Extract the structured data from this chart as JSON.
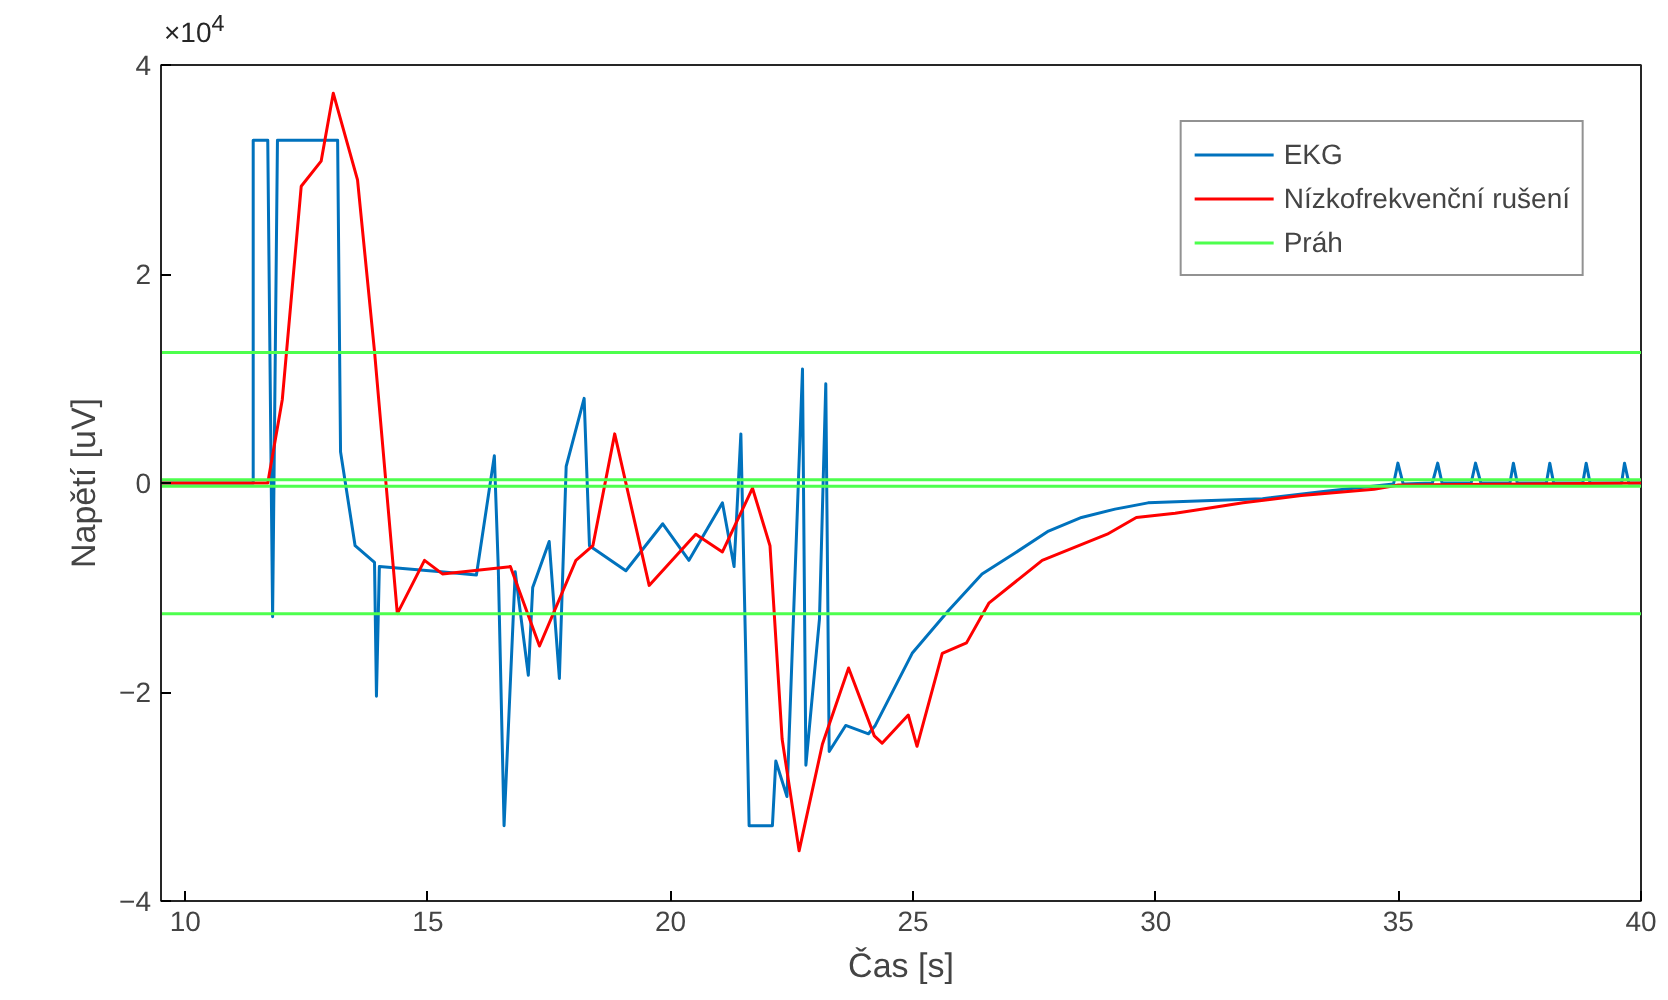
{
  "chart_data": {
    "type": "line",
    "xlabel": "Čas [s]",
    "ylabel": "Napětí [uV]",
    "annotations": [
      "×10$^{4}$"
    ],
    "xlim": [
      9.5,
      40
    ],
    "ylim": [
      -4,
      4
    ],
    "xticks": [
      10,
      15,
      20,
      25,
      30,
      35,
      40
    ],
    "yticks": [
      -4,
      -2,
      0,
      2,
      4
    ],
    "grid": false,
    "legend": "top right",
    "series": [
      {
        "name": "EKG",
        "color": "#0072bd",
        "x": [
          9.5,
          11.0,
          11.4,
          11.4,
          11.7,
          11.8,
          11.9,
          13.14,
          13.2,
          13.5,
          13.9,
          13.94,
          14.0,
          15.27,
          16.0,
          16.37,
          16.45,
          16.57,
          16.8,
          17.07,
          17.16,
          17.5,
          17.71,
          17.85,
          18.22,
          18.33,
          19.08,
          19.84,
          20.38,
          21.07,
          21.31,
          21.45,
          21.55,
          21.62,
          22.1,
          22.17,
          22.4,
          22.72,
          22.79,
          23.07,
          23.2,
          23.27,
          23.61,
          24.08,
          24.22,
          24.98,
          25.73,
          26.42,
          27.1,
          27.79,
          28.47,
          29.16,
          29.84,
          31.0,
          32.2,
          33.5,
          34.9,
          34.99,
          35.1,
          35.7,
          35.81,
          35.9,
          36.5,
          36.59,
          36.7,
          37.3,
          37.37,
          37.45,
          38.05,
          38.12,
          38.2,
          38.8,
          38.87,
          38.95,
          39.6,
          39.66,
          39.75,
          40.0
        ],
        "values": [
          0.0,
          0.0,
          0.0,
          3.28,
          3.28,
          -1.28,
          3.28,
          3.28,
          0.3,
          -0.6,
          -0.76,
          -2.04,
          -0.8,
          -0.85,
          -0.88,
          0.26,
          -0.8,
          -3.28,
          -0.85,
          -1.84,
          -1.0,
          -0.56,
          -1.87,
          0.16,
          0.81,
          -0.6,
          -0.84,
          -0.39,
          -0.74,
          -0.19,
          -0.8,
          0.47,
          -1.63,
          -3.28,
          -3.28,
          -2.66,
          -3.0,
          1.09,
          -2.7,
          -1.3,
          0.95,
          -2.57,
          -2.32,
          -2.4,
          -2.32,
          -1.63,
          -1.22,
          -0.87,
          -0.67,
          -0.46,
          -0.33,
          -0.25,
          -0.19,
          -0.17,
          -0.15,
          -0.08,
          -0.01,
          0.19,
          -0.01,
          0.0,
          0.19,
          0.0,
          0.0,
          0.19,
          0.0,
          0.0,
          0.19,
          0.0,
          0.0,
          0.19,
          0.0,
          0.0,
          0.19,
          0.0,
          0.0,
          0.19,
          0.0,
          0.0
        ]
      },
      {
        "name": "Nízkofrekvenční rušení",
        "color": "#ff0000",
        "x": [
          9.5,
          11.7,
          12.0,
          12.39,
          12.8,
          13.05,
          13.55,
          13.9,
          14.37,
          14.93,
          15.3,
          16.7,
          17.3,
          18.05,
          18.4,
          18.85,
          19.56,
          20.52,
          21.07,
          21.69,
          22.05,
          22.3,
          22.65,
          23.13,
          23.67,
          24.2,
          24.36,
          24.9,
          25.08,
          25.6,
          26.1,
          26.56,
          27.66,
          29.0,
          29.6,
          30.4,
          31.8,
          33.0,
          34.5,
          35.0,
          40.0
        ],
        "values": [
          0.0,
          0.0,
          0.8,
          2.84,
          3.08,
          3.73,
          2.9,
          1.26,
          -1.25,
          -0.74,
          -0.87,
          -0.8,
          -1.56,
          -0.74,
          -0.6,
          0.47,
          -0.98,
          -0.49,
          -0.66,
          -0.05,
          -0.6,
          -2.45,
          -3.52,
          -2.5,
          -1.77,
          -2.42,
          -2.49,
          -2.22,
          -2.52,
          -1.63,
          -1.53,
          -1.15,
          -0.74,
          -0.49,
          -0.33,
          -0.29,
          -0.19,
          -0.12,
          -0.06,
          -0.02,
          0.0
        ]
      },
      {
        "name": "Práh",
        "color": "#4dff4d",
        "x": [
          9.5,
          40
        ],
        "values": [
          1.25,
          1.25
        ]
      },
      {
        "color": "#4dff4d",
        "x": [
          9.5,
          40
        ],
        "values": [
          0.03,
          0.03
        ]
      },
      {
        "color": "#4dff4d",
        "x": [
          9.5,
          40
        ],
        "values": [
          -0.03,
          -0.03
        ]
      },
      {
        "color": "#4dff4d",
        "x": [
          9.5,
          40
        ],
        "values": [
          -1.25,
          -1.25
        ]
      }
    ]
  }
}
